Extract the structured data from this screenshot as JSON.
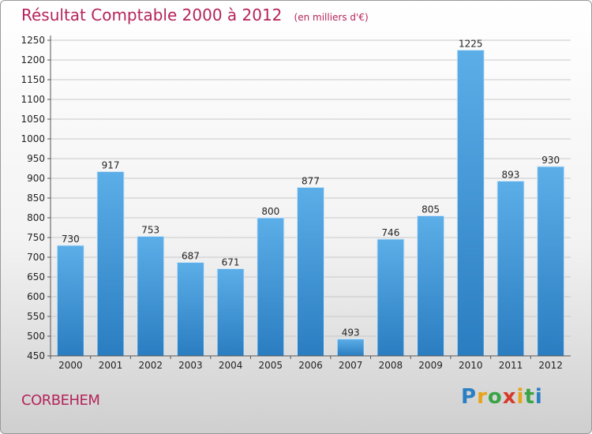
{
  "header": {
    "title": "Résultat Comptable 2000 à 2012",
    "subtitle": "(en milliers d'€)"
  },
  "footer": {
    "commune": "CORBEHEM",
    "logo_text": "Proxiti"
  },
  "colors": {
    "title": "#b5245a",
    "bar_light": "#5caee8",
    "bar_dark": "#2a7dc0",
    "grid": "#c8c8c8"
  },
  "chart_data": {
    "type": "bar",
    "categories": [
      "2000",
      "2001",
      "2002",
      "2003",
      "2004",
      "2005",
      "2006",
      "2007",
      "2008",
      "2009",
      "2010",
      "2011",
      "2012"
    ],
    "values": [
      730,
      917,
      753,
      687,
      671,
      800,
      877,
      493,
      746,
      805,
      1225,
      893,
      930
    ],
    "ylim": [
      450,
      1250
    ],
    "ytick_step": 50,
    "grid": true,
    "title": "Résultat Comptable 2000 à 2012",
    "subtitle": "(en milliers d'€)",
    "xlabel": "",
    "ylabel": ""
  }
}
